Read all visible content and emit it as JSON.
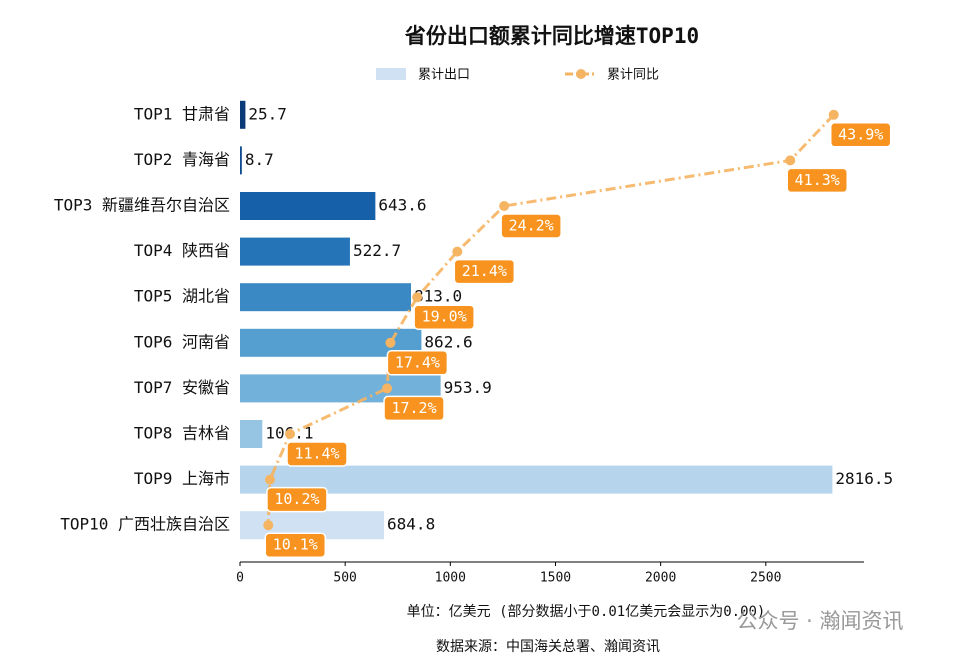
{
  "chart_data": {
    "type": "bar_line",
    "orientation": "horizontal",
    "title": "省份出口额累计同比增速TOP10",
    "categories": [
      "TOP1 甘肃省",
      "TOP2 青海省",
      "TOP3 新疆维吾尔自治区",
      "TOP4 陕西省",
      "TOP5 湖北省",
      "TOP6 河南省",
      "TOP7 安徽省",
      "TOP8 吉林省",
      "TOP9 上海市",
      "TOP10 广西壮族自治区"
    ],
    "series": [
      {
        "name": "累计出口",
        "type": "bar",
        "legend_color": "#cfe1f2",
        "colors": [
          "#0b3a78",
          "#0f4c8f",
          "#1560a8",
          "#2474b7",
          "#3a89c5",
          "#549fd0",
          "#71b1da",
          "#96c4e3",
          "#b6d4ec",
          "#cfe1f2"
        ],
        "values": [
          25.7,
          8.7,
          643.6,
          522.7,
          813.0,
          862.6,
          953.9,
          106.1,
          2816.5,
          684.8
        ],
        "value_labels": [
          "25.7",
          "8.7",
          "643.6",
          "522.7",
          "813.0",
          "862.6",
          "953.9",
          "106.1",
          "2816.5",
          "684.8"
        ]
      },
      {
        "name": "累计同比",
        "type": "line",
        "axis": "x2",
        "color": "#f5b461",
        "label_color": "#f7931e",
        "values": [
          43.9,
          41.3,
          24.2,
          21.4,
          19.0,
          17.4,
          17.2,
          11.4,
          10.2,
          10.1
        ],
        "value_labels": [
          "43.9%",
          "41.3%",
          "24.2%",
          "21.4%",
          "19.0%",
          "17.4%",
          "17.2%",
          "11.4%",
          "10.2%",
          "10.1%"
        ]
      }
    ],
    "xlim": [
      0,
      2957.3
    ],
    "xticks": [
      0,
      500,
      1000,
      1500,
      2000,
      2500
    ],
    "x2lim": [
      8.41,
      45.59
    ],
    "unit_note": "单位：亿美元  (部分数据小于0.01亿美元会显示为0.00)",
    "source": "数据来源：中国海关总署、瀚闻资讯",
    "watermark": "公众号 · 瀚闻资讯"
  }
}
